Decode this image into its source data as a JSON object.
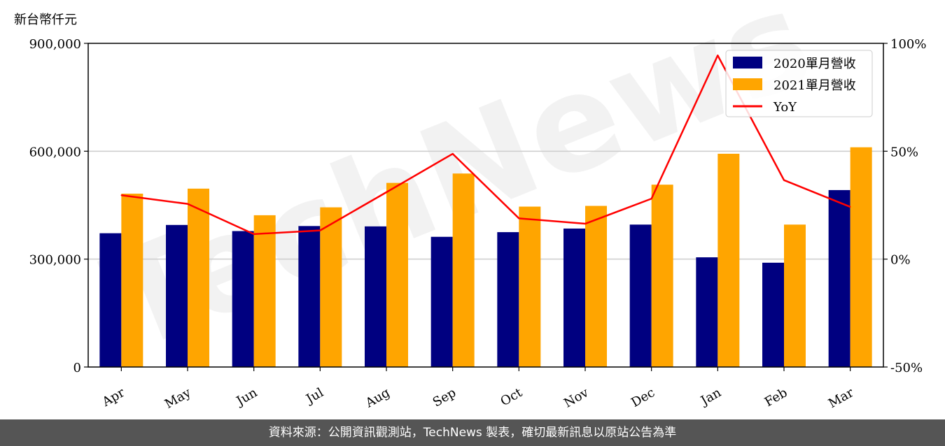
{
  "chart_data": {
    "type": "bar",
    "unit_label": "新台幣仟元",
    "categories": [
      "Apr",
      "May",
      "Jun",
      "Jul",
      "Aug",
      "Sep",
      "Oct",
      "Nov",
      "Dec",
      "Jan",
      "Feb",
      "Mar"
    ],
    "series": [
      {
        "name": "2020單月營收",
        "type": "bar",
        "axis": "left",
        "color": "#000080",
        "values": [
          372000,
          395000,
          378000,
          392000,
          391000,
          362000,
          375000,
          385000,
          396000,
          305000,
          290000,
          492000
        ]
      },
      {
        "name": "2021單月營收",
        "type": "bar",
        "axis": "left",
        "color": "#FFA500",
        "values": [
          482000,
          496000,
          422000,
          444000,
          512000,
          538000,
          446000,
          448000,
          507000,
          593000,
          396000,
          611000
        ]
      },
      {
        "name": "YoY",
        "type": "line",
        "axis": "right",
        "color": "#FF0000",
        "values": [
          29.6,
          25.6,
          11.6,
          13.3,
          31.0,
          48.8,
          18.9,
          16.4,
          28.0,
          94.4,
          36.6,
          24.2
        ]
      }
    ],
    "y_left": {
      "ylim": [
        0,
        900000
      ],
      "ticks": [
        0,
        300000,
        600000,
        900000
      ],
      "tick_labels": [
        "0",
        "300,000",
        "600,000",
        "900,000"
      ]
    },
    "y_right": {
      "ylim": [
        -50,
        100
      ],
      "ticks": [
        -50,
        0,
        50,
        100
      ],
      "tick_labels": [
        "-50%",
        "0%",
        "50%",
        "100%"
      ]
    },
    "grid": "horizontal",
    "legend_position": "top-right"
  },
  "watermark": "TechNews",
  "footer_text": "資料來源：公開資訊觀測站，TechNews 製表，確切最新訊息以原站公告為準"
}
